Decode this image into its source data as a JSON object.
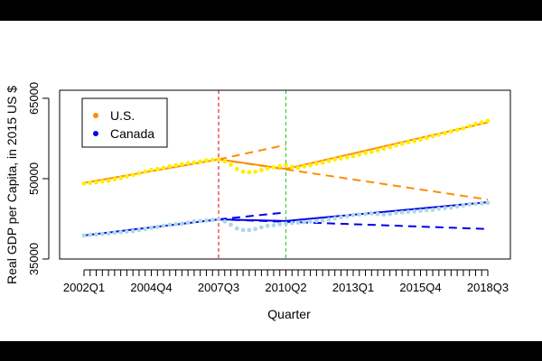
{
  "chart_data": {
    "type": "scatter",
    "xlabel": "Quarter",
    "ylabel": "Real GDP per Capita, in 2015 US $",
    "x_start_quarter": "2002Q1",
    "n_quarters": 67,
    "xticks": [
      "2002Q1",
      "2004Q4",
      "2007Q3",
      "2010Q2",
      "2013Q1",
      "2015Q4",
      "2018Q3"
    ],
    "xtick_indices": [
      0,
      11,
      22,
      33,
      44,
      55,
      66
    ],
    "ylim": [
      35000,
      66500
    ],
    "yticks": [
      35000,
      50000,
      65000
    ],
    "ytick_labels": [
      "35000",
      "50000",
      "65000"
    ],
    "vlines": [
      {
        "name": "break-2007q3",
        "x_index": 22,
        "color": "#dd0000"
      },
      {
        "name": "break-2010q2",
        "x_index": 33,
        "color": "#22cc22"
      }
    ],
    "legend": {
      "position": "top-left",
      "entries": [
        {
          "label": "U.S.",
          "color": "#ff8c00"
        },
        {
          "label": "Canada",
          "color": "#0000ee"
        }
      ]
    },
    "series": [
      {
        "name": "U.S. actual",
        "style": "points",
        "color": "#ffee00",
        "values": [
          49100,
          49200,
          49300,
          49500,
          49600,
          49900,
          50100,
          50400,
          50700,
          51000,
          51300,
          51600,
          51800,
          52000,
          52300,
          52500,
          52700,
          52900,
          53000,
          53200,
          53400,
          53500,
          53600,
          53200,
          52600,
          51800,
          51300,
          51200,
          51300,
          51600,
          51900,
          52100,
          52300,
          52500,
          52200,
          52000,
          52300,
          52500,
          52800,
          53000,
          53300,
          53600,
          53800,
          54000,
          54200,
          54500,
          54800,
          55000,
          55300,
          55600,
          55900,
          56200,
          56500,
          56800,
          57000,
          57300,
          57600,
          57900,
          58200,
          58500,
          58800,
          59100,
          59400,
          59800,
          60200,
          60500,
          60800
        ]
      },
      {
        "name": "Canada actual",
        "style": "points",
        "color": "#add8e6",
        "values": [
          39400,
          39500,
          39600,
          39700,
          39800,
          39900,
          40000,
          40100,
          40200,
          40400,
          40600,
          40800,
          41000,
          41200,
          41400,
          41500,
          41600,
          41800,
          42000,
          42100,
          42200,
          42300,
          42400,
          42000,
          41400,
          40700,
          40400,
          40400,
          40600,
          40900,
          41200,
          41300,
          41500,
          41600,
          41700,
          41800,
          41900,
          42000,
          42100,
          42200,
          42400,
          42600,
          42800,
          43000,
          43200,
          43300,
          43400,
          43500,
          43400,
          43300,
          43400,
          43600,
          43700,
          43800,
          43900,
          44000,
          44100,
          44200,
          44400,
          44500,
          44600,
          44800,
          45000,
          45200,
          45300,
          45400,
          45500
        ]
      },
      {
        "name": "U.S. fitted",
        "style": "line",
        "color": "#ff8c00",
        "x": [
          0,
          22,
          33,
          66
        ],
        "values": [
          49200,
          53600,
          51800,
          60500
        ]
      },
      {
        "name": "U.S. projection pre-2007",
        "style": "dashed",
        "color": "#ff8c00",
        "x": [
          22,
          33
        ],
        "values": [
          53600,
          56300
        ]
      },
      {
        "name": "U.S. projection post-crisis",
        "style": "dashed",
        "color": "#ff8c00",
        "x": [
          22,
          66
        ],
        "values": [
          53600,
          46100
        ]
      },
      {
        "name": "Canada fitted",
        "style": "line",
        "color": "#0000ee",
        "x": [
          0,
          22,
          33,
          66
        ],
        "values": [
          39400,
          42400,
          42100,
          45600
        ]
      },
      {
        "name": "Canada projection pre-2007",
        "style": "dashed",
        "color": "#0000ee",
        "x": [
          22,
          33
        ],
        "values": [
          42400,
          43700
        ]
      },
      {
        "name": "Canada projection post-crisis",
        "style": "dashed",
        "color": "#0000ee",
        "x": [
          22,
          66
        ],
        "values": [
          42400,
          40600
        ]
      }
    ]
  }
}
